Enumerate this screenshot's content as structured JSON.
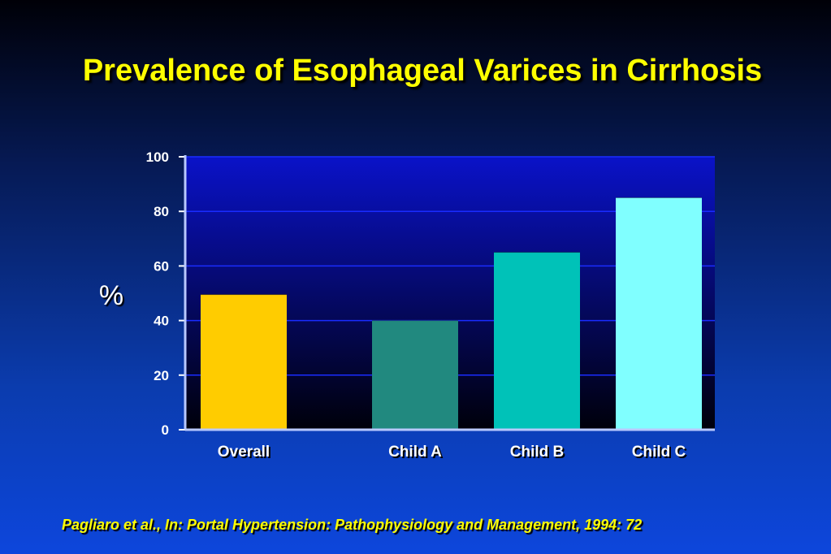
{
  "slide": {
    "title": "Prevalence of Esophageal Varices in Cirrhosis",
    "source": "Pagliaro et al., In: Portal Hypertension: Pathophysiology and Management, 1994: 72",
    "colors": {
      "title": "#ffff00",
      "plot_top": "#0a12c8",
      "plot_bottom": "#00000a",
      "axis": "#ffffff",
      "gridline": "#1a2cff"
    }
  },
  "chart_data": {
    "type": "bar",
    "categories": [
      "Overall",
      "Child A",
      "Child B",
      "Child C"
    ],
    "values": [
      49.5,
      40,
      65,
      85
    ],
    "bar_colors": [
      "#ffcc00",
      "#21897f",
      "#00c2b8",
      "#80ffff"
    ],
    "ylabel": "%",
    "xlabel": "",
    "ylim": [
      0,
      100
    ],
    "yticks": [
      "0",
      "20",
      "40",
      "60",
      "80",
      "100"
    ],
    "grid": true,
    "legend": "none"
  }
}
